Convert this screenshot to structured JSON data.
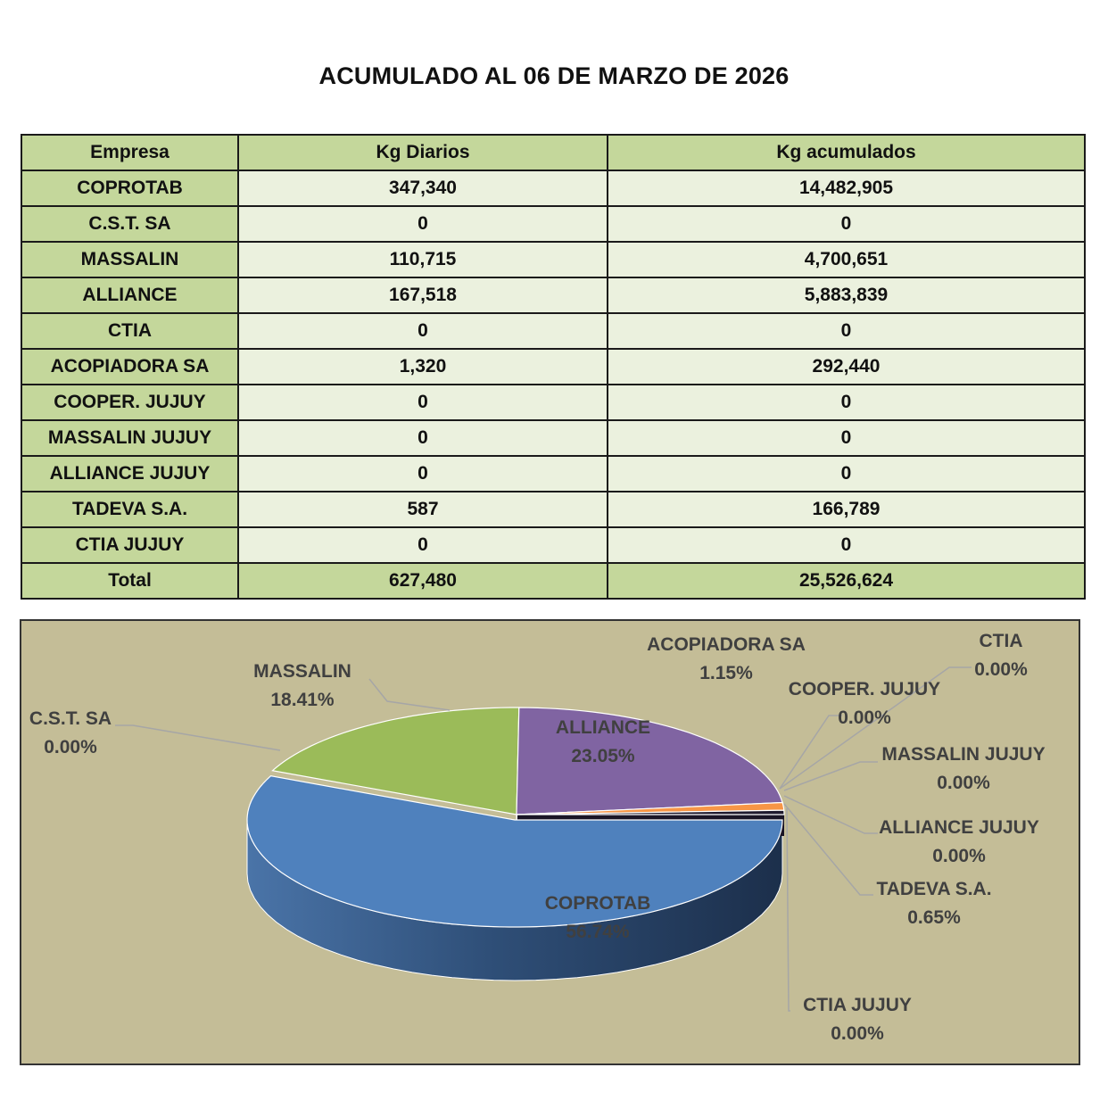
{
  "title": "ACUMULADO AL 06 DE MARZO DE 2026",
  "table": {
    "headers": [
      "Empresa",
      "Kg Diarios",
      "Kg acumulados"
    ],
    "rows": [
      [
        "COPROTAB",
        "347,340",
        "14,482,905"
      ],
      [
        "C.S.T. SA",
        "0",
        "0"
      ],
      [
        "MASSALIN",
        "110,715",
        "4,700,651"
      ],
      [
        "ALLIANCE",
        "167,518",
        "5,883,839"
      ],
      [
        "CTIA",
        "0",
        "0"
      ],
      [
        "ACOPIADORA SA",
        "1,320",
        "292,440"
      ],
      [
        "COOPER. JUJUY",
        "0",
        "0"
      ],
      [
        "MASSALIN JUJUY",
        "0",
        "0"
      ],
      [
        "ALLIANCE JUJUY",
        "0",
        "0"
      ],
      [
        "TADEVA S.A.",
        "587",
        "166,789"
      ],
      [
        "CTIA JUJUY",
        "0",
        "0"
      ]
    ],
    "total": [
      "Total",
      "627,480",
      "25,526,624"
    ]
  },
  "chart_data": {
    "type": "pie",
    "three_d": true,
    "categories": [
      "COPROTAB",
      "C.S.T. SA",
      "MASSALIN",
      "ALLIANCE",
      "CTIA",
      "ACOPIADORA SA",
      "COOPER. JUJUY",
      "MASSALIN JUJUY",
      "ALLIANCE JUJUY",
      "TADEVA S.A.",
      "CTIA JUJUY"
    ],
    "values": [
      56.74,
      0.0,
      18.41,
      23.05,
      0.0,
      1.15,
      0.0,
      0.0,
      0.0,
      0.65,
      0.0
    ],
    "labels": [
      "56.74%",
      "0.00%",
      "18.41%",
      "23.05%",
      "0.00%",
      "1.15%",
      "0.00%",
      "0.00%",
      "0.00%",
      "0.65%",
      "0.00%"
    ],
    "colors": {
      "COPROTAB": "#4f81bd",
      "MASSALIN": "#9bbb59",
      "ALLIANCE": "#8064a2",
      "ACOPIADORA SA": "#f79646",
      "TADEVA S.A.": "#1f1a2e",
      "background": "#c4bd97"
    }
  }
}
